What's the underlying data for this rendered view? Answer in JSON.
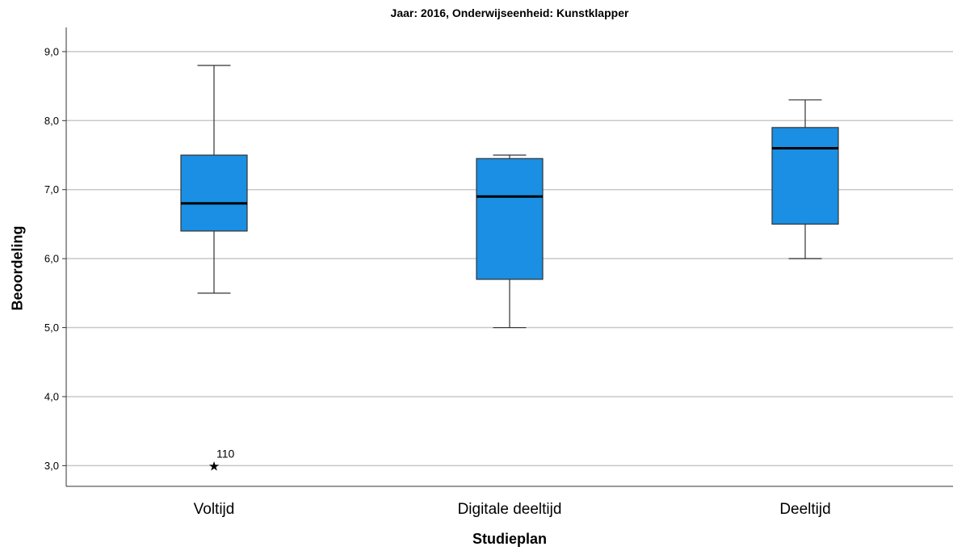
{
  "chart_data": {
    "type": "boxplot",
    "title": "Jaar: 2016, Onderwijseenheid: Kunstklapper",
    "xlabel": "Studieplan",
    "ylabel": "Beoordeling",
    "ylim": [
      2.7,
      9.35
    ],
    "yticks": [
      3.0,
      4.0,
      5.0,
      6.0,
      7.0,
      8.0,
      9.0
    ],
    "ytick_labels": [
      "3,0",
      "4,0",
      "5,0",
      "6,0",
      "7,0",
      "8,0",
      "9,0"
    ],
    "categories": [
      "Voltijd",
      "Digitale deeltijd",
      "Deeltijd"
    ],
    "boxes": [
      {
        "category": "Voltijd",
        "whisker_low": 5.5,
        "q1": 6.4,
        "median": 6.8,
        "q3": 7.5,
        "whisker_high": 8.8
      },
      {
        "category": "Digitale deeltijd",
        "whisker_low": 5.0,
        "q1": 5.7,
        "median": 6.9,
        "q3": 7.45,
        "whisker_high": 7.5
      },
      {
        "category": "Deeltijd",
        "whisker_low": 6.0,
        "q1": 6.5,
        "median": 7.6,
        "q3": 7.9,
        "whisker_high": 8.3
      }
    ],
    "outliers": [
      {
        "category": "Voltijd",
        "value": 3.0,
        "label": "110",
        "marker": "star"
      }
    ],
    "grid": true,
    "box_color": "#1a8fe3"
  }
}
